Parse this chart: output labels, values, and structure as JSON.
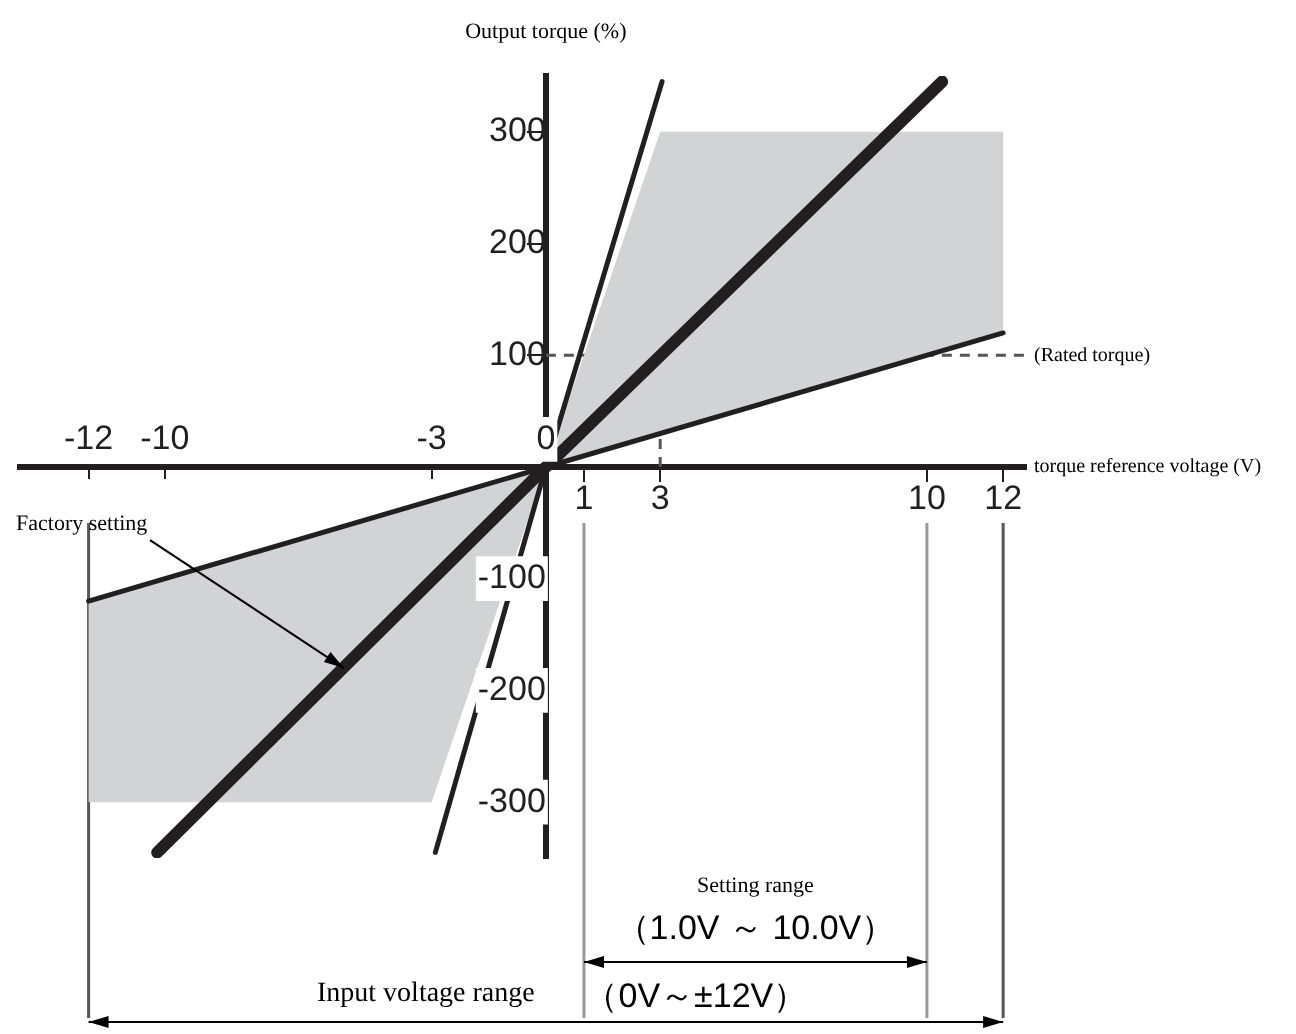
{
  "chart_data": {
    "type": "line",
    "xlabel": "torque reference voltage (V)",
    "ylabel": "Output torque (%)",
    "xlim": [
      -13.8,
      12.6
    ],
    "ylim": [
      -350,
      350
    ],
    "xticks": [
      1,
      3,
      10,
      12
    ],
    "yticks": [
      100,
      200,
      300
    ],
    "x2lim": [
      -13.8,
      12.6
    ],
    "x2ticks": [
      -12,
      -10,
      -3,
      0
    ],
    "y2lim": [
      -350,
      350
    ],
    "y2ticks": [
      -300,
      -200,
      -100
    ],
    "series": [
      {
        "type": "area",
        "color": "#d1d3d5",
        "x": [
          0,
          3,
          12,
          12,
          0
        ],
        "values": [
          0,
          300,
          300,
          120,
          0
        ]
      },
      {
        "type": "area",
        "color": "#d1d3d5",
        "x": [
          0,
          -3,
          -12,
          -12,
          0
        ],
        "values": [
          0,
          -300,
          -300,
          -120,
          0
        ]
      },
      {
        "color": "#231f20",
        "x": [
          -2.9,
          0,
          3.05
        ],
        "values": [
          -345,
          0,
          345
        ]
      },
      {
        "color": "#231f20",
        "x": [
          -10.2,
          0,
          10.4
        ],
        "values": [
          -345,
          0,
          345
        ]
      },
      {
        "color": "#231f20",
        "x": [
          -12,
          0,
          12
        ],
        "values": [
          -120,
          0,
          120
        ]
      }
    ],
    "ref_lines": [
      {
        "axis": "y",
        "value": 100,
        "label": "(Rated torque)",
        "line_style": "dashed",
        "color": "#555555"
      },
      {
        "axis": "x",
        "value": 1,
        "color": "#999999"
      },
      {
        "axis": "x",
        "value": 3,
        "line_style": "dashed",
        "color": "#555555"
      },
      {
        "axis": "x",
        "value": 10,
        "color": "#999999"
      },
      {
        "axis": "x",
        "value": 12,
        "color": "#555555"
      },
      {
        "axis": "x",
        "value": -12,
        "color": "#555555"
      }
    ],
    "annotations": [
      {
        "text": "Factory setting",
        "x": -5.3,
        "y": -180
      },
      "Setting range",
      "（1.0V ～ 10.0V）",
      "Input voltage range",
      "（0V～±12V）"
    ],
    "legend": false
  }
}
